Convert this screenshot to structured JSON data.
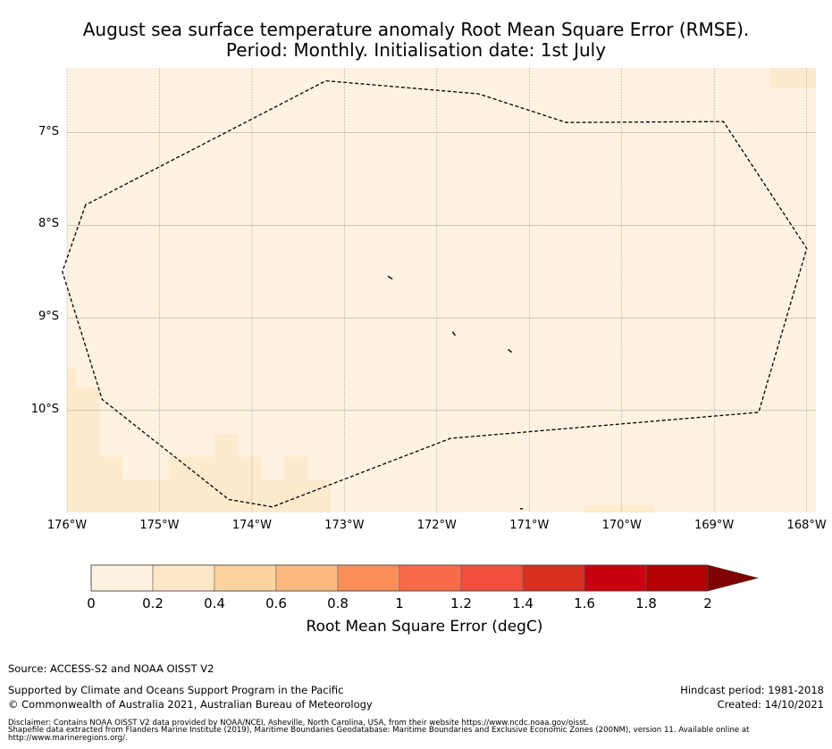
{
  "title_line1": "August sea surface temperature anomaly Root Mean Square Error (RMSE).",
  "title_line2": "Period: Monthly. Initialisation date: 1st July",
  "map": {
    "lon_range": [
      -176.0,
      -167.9
    ],
    "lat_range": [
      -11.1,
      -6.3
    ],
    "lat_ticks": [
      {
        "value": -7,
        "label": "7°S"
      },
      {
        "value": -8,
        "label": "8°S"
      },
      {
        "value": -9,
        "label": "9°S"
      },
      {
        "value": -10,
        "label": "10°S"
      }
    ],
    "lon_ticks": [
      {
        "value": -176,
        "label": "176°W"
      },
      {
        "value": -175,
        "label": "175°W"
      },
      {
        "value": -174,
        "label": "174°W"
      },
      {
        "value": -173,
        "label": "173°W"
      },
      {
        "value": -172,
        "label": "172°W"
      },
      {
        "value": -171,
        "label": "171°W"
      },
      {
        "value": -170,
        "label": "170°W"
      },
      {
        "value": -169,
        "label": "169°W"
      },
      {
        "value": -168,
        "label": "168°W"
      }
    ],
    "background_color": "#fff2e0",
    "higher_error_color": "#feeacc",
    "eez_boundary": [
      [
        -175.8,
        -7.78
      ],
      [
        -176.05,
        -8.5
      ],
      [
        -175.62,
        -9.88
      ],
      [
        -174.25,
        -10.96
      ],
      [
        -173.78,
        -11.04
      ],
      [
        -171.85,
        -10.3
      ],
      [
        -168.52,
        -10.02
      ],
      [
        -168.0,
        -8.25
      ],
      [
        -168.9,
        -6.88
      ],
      [
        -170.6,
        -6.89
      ],
      [
        -171.55,
        -6.58
      ],
      [
        -173.2,
        -6.44
      ]
    ],
    "islands": [
      [
        [
          -172.53,
          -8.55
        ],
        [
          -172.48,
          -8.58
        ]
      ],
      [
        [
          -171.83,
          -9.15
        ],
        [
          -171.8,
          -9.19
        ]
      ],
      [
        [
          -171.23,
          -9.34
        ],
        [
          -171.19,
          -9.37
        ]
      ],
      [
        [
          -171.1,
          -11.06
        ],
        [
          -171.07,
          -11.06
        ]
      ]
    ],
    "higher_error_cells": [
      [
        -176.0,
        -9.55,
        -175.9,
        -11.1
      ],
      [
        -175.9,
        -9.75,
        -175.65,
        -11.1
      ],
      [
        -175.65,
        -10.5,
        -175.4,
        -11.1
      ],
      [
        -175.4,
        -10.75,
        -174.9,
        -11.1
      ],
      [
        -174.9,
        -10.5,
        -174.4,
        -11.1
      ],
      [
        -174.4,
        -10.25,
        -174.15,
        -11.1
      ],
      [
        -174.15,
        -10.5,
        -173.9,
        -11.1
      ],
      [
        -173.9,
        -10.75,
        -173.65,
        -11.1
      ],
      [
        -173.65,
        -10.5,
        -173.4,
        -11.1
      ],
      [
        -173.4,
        -10.75,
        -173.15,
        -11.1
      ],
      [
        -170.4,
        -11.02,
        -169.65,
        -11.1
      ],
      [
        -168.4,
        -6.3,
        -167.9,
        -6.52
      ]
    ]
  },
  "colorbar": {
    "label": "Root Mean Square Error (degC)",
    "ticks": [
      "0",
      "0.2",
      "0.4",
      "0.6",
      "0.8",
      "1",
      "1.2",
      "1.4",
      "1.6",
      "1.8",
      "2"
    ],
    "bins": [
      [
        0.0,
        0.2,
        "#fff2e0"
      ],
      [
        0.2,
        0.4,
        "#fee7c6"
      ],
      [
        0.4,
        0.6,
        "#fdd49e"
      ],
      [
        0.6,
        0.8,
        "#fdb97f"
      ],
      [
        0.8,
        1.0,
        "#fc8e59"
      ],
      [
        1.0,
        1.2,
        "#fb6b4a"
      ],
      [
        1.2,
        1.4,
        "#ef4f3c"
      ],
      [
        1.4,
        1.6,
        "#d7301f"
      ],
      [
        1.6,
        1.8,
        "#c8000f"
      ],
      [
        1.8,
        2.0,
        "#b20000"
      ]
    ],
    "extend_color": "#7f0000"
  },
  "footer": {
    "source": "Source: ACCESS-S2 and NOAA OISST V2",
    "supported": "Supported by Climate and Oceans Support Program in the Pacific",
    "copyright": "© Commonwealth of Australia 2021, Australian Bureau of Meteorology",
    "hindcast": "Hindcast period: 1981-2018",
    "created": "Created: 14/10/2021",
    "disclaimer1": "Disclaimer: Contains NOAA OISST V2 data provided by NOAA/NCEI, Asheville, North Carolina, USA, from their website https://www.ncdc.noaa.gov/oisst.",
    "disclaimer2": "Shapefile data extracted from Flanders Marine Institute (2019), Maritime Boundaries Geodatabase: Maritime Boundaries and Exclusive Economic Zones (200NM), version 11. Available online at http://www.marineregions.org/."
  }
}
